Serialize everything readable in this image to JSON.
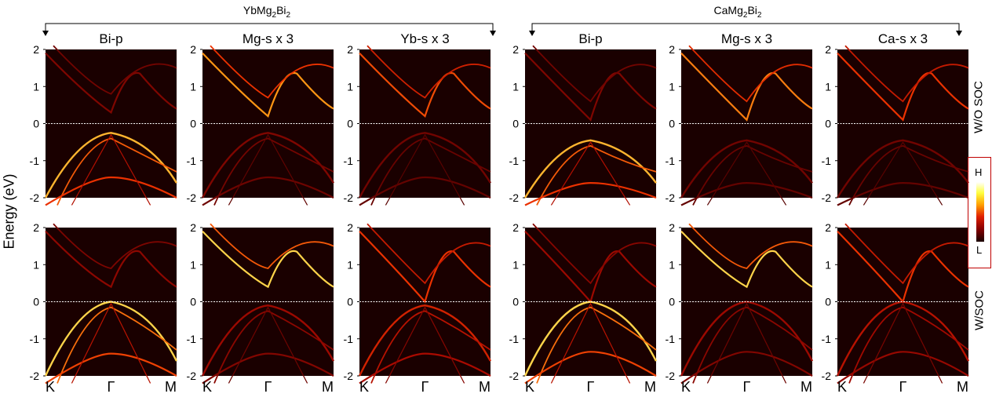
{
  "figure": {
    "groups": [
      {
        "title_main": "YbMg",
        "title_sub1": "2",
        "title_mid": "Bi",
        "title_sub2": "2"
      },
      {
        "title_main": "CaMg",
        "title_sub1": "2",
        "title_mid": "Bi",
        "title_sub2": "2"
      }
    ],
    "row_labels": [
      "W/O SOC",
      "W/SOC"
    ],
    "ylabel": "Energy (eV)",
    "colorbar": {
      "high": "H",
      "low": "L"
    }
  },
  "chart_data": {
    "type": "heatmap",
    "description_kind": "projected band structure (fat bands), 2 rows x 6 panels",
    "ylim": [
      -2,
      2
    ],
    "yticks": [
      -2,
      -1,
      0,
      1,
      2
    ],
    "ytick_labels": [
      "-2",
      "-1",
      "0",
      "1",
      "2"
    ],
    "xticks": [
      "K",
      "Γ",
      "M"
    ],
    "fermi_level": 0,
    "columns": [
      {
        "title": "Bi-p"
      },
      {
        "title": "Mg-s x 3"
      },
      {
        "title": "Yb-s x 3"
      },
      {
        "title": "Bi-p"
      },
      {
        "title": "Mg-s x 3"
      },
      {
        "title": "Ca-s x 3"
      }
    ],
    "bands": [
      {
        "row": 0,
        "col": 0,
        "vbm": -0.25,
        "cbm": 0.3,
        "cb_weight": 0.2,
        "vb_weight": 0.85,
        "lower_band_top": -1.45
      },
      {
        "row": 0,
        "col": 1,
        "vbm": -0.25,
        "cbm": 0.2,
        "cb_weight": 0.8,
        "vb_weight": 0.2,
        "lower_band_top": -1.45
      },
      {
        "row": 0,
        "col": 2,
        "vbm": -0.25,
        "cbm": 0.2,
        "cb_weight": 0.65,
        "vb_weight": 0.15,
        "lower_band_top": -1.45
      },
      {
        "row": 0,
        "col": 3,
        "vbm": -0.45,
        "cbm": 0.1,
        "cb_weight": 0.2,
        "vb_weight": 0.85,
        "lower_band_top": -1.6
      },
      {
        "row": 0,
        "col": 4,
        "vbm": -0.45,
        "cbm": 0.1,
        "cb_weight": 0.75,
        "vb_weight": 0.15,
        "lower_band_top": -1.6
      },
      {
        "row": 0,
        "col": 5,
        "vbm": -0.45,
        "cbm": 0.1,
        "cb_weight": 0.6,
        "vb_weight": 0.15,
        "lower_band_top": -1.6
      },
      {
        "row": 1,
        "col": 0,
        "vbm": 0.0,
        "cbm": 0.4,
        "cb_weight": 0.25,
        "vb_weight": 0.9,
        "lower_band_top": -1.4
      },
      {
        "row": 1,
        "col": 1,
        "vbm": -0.1,
        "cbm": 0.4,
        "cb_weight": 0.9,
        "vb_weight": 0.3,
        "lower_band_top": -1.4
      },
      {
        "row": 1,
        "col": 2,
        "vbm": -0.1,
        "cbm": 0.0,
        "cb_weight": 0.6,
        "vb_weight": 0.5,
        "lower_band_top": -1.4
      },
      {
        "row": 1,
        "col": 3,
        "vbm": 0.0,
        "cbm": 0.0,
        "cb_weight": 0.3,
        "vb_weight": 0.9,
        "lower_band_top": -1.35
      },
      {
        "row": 1,
        "col": 4,
        "vbm": 0.0,
        "cbm": 0.4,
        "cb_weight": 0.9,
        "vb_weight": 0.3,
        "lower_band_top": -1.35
      },
      {
        "row": 1,
        "col": 5,
        "vbm": 0.0,
        "cbm": 0.0,
        "cb_weight": 0.6,
        "vb_weight": 0.4,
        "lower_band_top": -1.35
      }
    ]
  }
}
